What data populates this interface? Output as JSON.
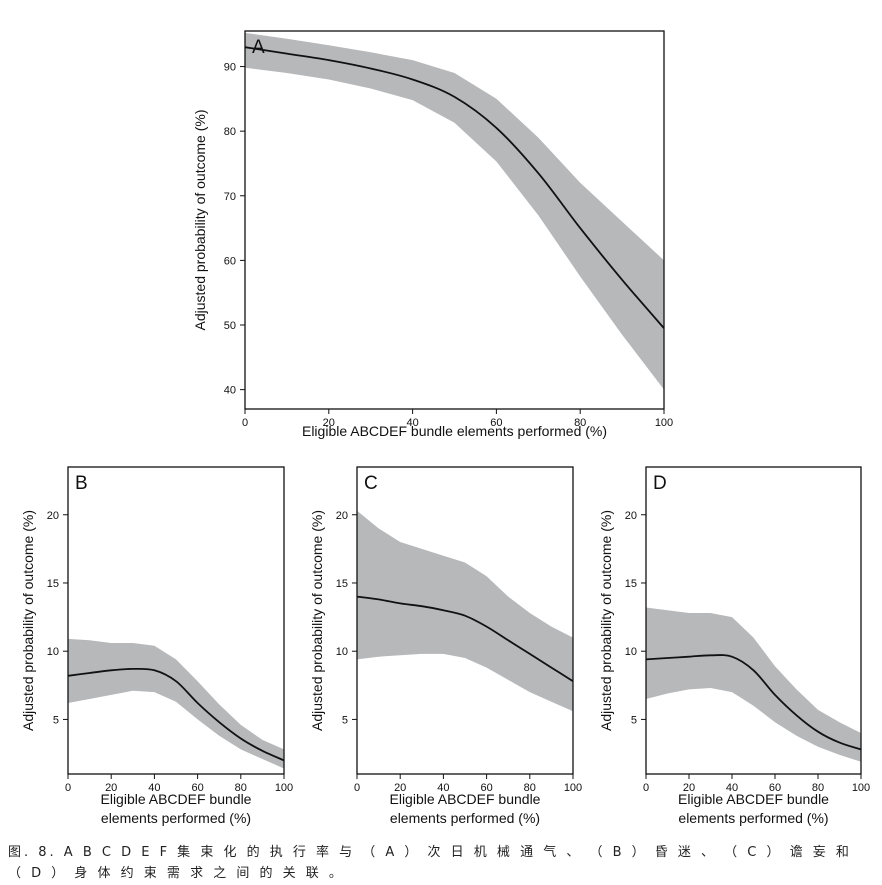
{
  "caption": "图. 8. A B C D E F 集 束 化 的 执 行 率 与 （ A ） 次 日 机 械 通 气 、 （ B ） 昏 迷 、 （ C ） 谵 妄 和 （ D ） 身 体 约 束 需 求 之 间 的 关 联 。",
  "chart_data": [
    {
      "type": "line",
      "panel": "A",
      "xlabel": "Eligible ABCDEF bundle elements performed (%)",
      "ylabel": "Adjusted probability of outcome (%)",
      "xlim": [
        0,
        100
      ],
      "ylim": [
        37,
        95.5
      ],
      "xticks": [
        0,
        20,
        40,
        60,
        80,
        100
      ],
      "yticks": [
        40,
        50,
        60,
        70,
        80,
        90
      ],
      "x": [
        0,
        10,
        20,
        30,
        40,
        50,
        60,
        70,
        80,
        90,
        100
      ],
      "estimate": [
        93,
        92,
        91,
        89.7,
        88,
        85.3,
        80.5,
        73.5,
        65,
        57,
        49.5
      ],
      "ci_lower": [
        89.8,
        89,
        88,
        86.6,
        84.8,
        81.3,
        75.3,
        67,
        57.5,
        48.5,
        40
      ],
      "ci_upper": [
        95.2,
        94.3,
        93.3,
        92.2,
        91,
        89,
        85,
        79,
        72,
        66,
        60
      ],
      "grid": false,
      "legend": false
    },
    {
      "type": "line",
      "panel": "B",
      "xlabel": "Eligible ABCDEF bundle elements performed (%)",
      "ylabel": "Adjusted probability of outcome (%)",
      "xlim": [
        0,
        100
      ],
      "ylim": [
        1,
        23.5
      ],
      "xticks": [
        0,
        20,
        40,
        60,
        80,
        100
      ],
      "yticks": [
        5,
        10,
        15,
        20
      ],
      "x": [
        0,
        10,
        20,
        30,
        40,
        50,
        60,
        70,
        80,
        90,
        100
      ],
      "estimate": [
        8.2,
        8.4,
        8.6,
        8.7,
        8.6,
        7.8,
        6.2,
        4.8,
        3.6,
        2.7,
        2.0
      ],
      "ci_lower": [
        6.2,
        6.5,
        6.8,
        7.1,
        7.0,
        6.3,
        5.0,
        3.8,
        2.8,
        2.1,
        1.4
      ],
      "ci_upper": [
        10.9,
        10.8,
        10.6,
        10.6,
        10.4,
        9.4,
        7.8,
        6.1,
        4.6,
        3.5,
        2.8
      ],
      "grid": false,
      "legend": false
    },
    {
      "type": "line",
      "panel": "C",
      "xlabel": "Eligible ABCDEF bundle elements performed (%)",
      "ylabel": "Adjusted probability of outcome (%)",
      "xlim": [
        0,
        100
      ],
      "ylim": [
        1,
        23.5
      ],
      "xticks": [
        0,
        20,
        40,
        60,
        80,
        100
      ],
      "yticks": [
        5,
        10,
        15,
        20
      ],
      "x": [
        0,
        10,
        20,
        30,
        40,
        50,
        60,
        70,
        80,
        90,
        100
      ],
      "estimate": [
        14.0,
        13.8,
        13.5,
        13.3,
        13.0,
        12.6,
        11.8,
        10.8,
        9.8,
        8.8,
        7.8
      ],
      "ci_lower": [
        9.4,
        9.6,
        9.7,
        9.8,
        9.8,
        9.5,
        8.8,
        7.9,
        7.0,
        6.3,
        5.6
      ],
      "ci_upper": [
        20.3,
        19.0,
        18.0,
        17.5,
        17.0,
        16.5,
        15.5,
        14.0,
        12.8,
        11.8,
        11.0
      ],
      "grid": false,
      "legend": false
    },
    {
      "type": "line",
      "panel": "D",
      "xlabel": "Eligible ABCDEF bundle elements performed (%)",
      "ylabel": "Adjusted probability of outcome (%)",
      "xlim": [
        0,
        100
      ],
      "ylim": [
        1,
        23.5
      ],
      "xticks": [
        0,
        20,
        40,
        60,
        80,
        100
      ],
      "yticks": [
        5,
        10,
        15,
        20
      ],
      "x": [
        0,
        10,
        20,
        30,
        40,
        50,
        60,
        70,
        80,
        90,
        100
      ],
      "estimate": [
        9.4,
        9.5,
        9.6,
        9.7,
        9.6,
        8.6,
        6.8,
        5.3,
        4.1,
        3.3,
        2.8
      ],
      "ci_lower": [
        6.5,
        6.9,
        7.2,
        7.3,
        7.0,
        6.0,
        4.8,
        3.8,
        3.0,
        2.4,
        1.9
      ],
      "ci_upper": [
        13.2,
        13.0,
        12.8,
        12.8,
        12.5,
        11.0,
        8.9,
        7.2,
        5.7,
        4.8,
        4.0
      ],
      "grid": false,
      "legend": false
    }
  ],
  "colors": {
    "band": "#b7b8ba",
    "line": "#111111",
    "frame": "#111111"
  }
}
